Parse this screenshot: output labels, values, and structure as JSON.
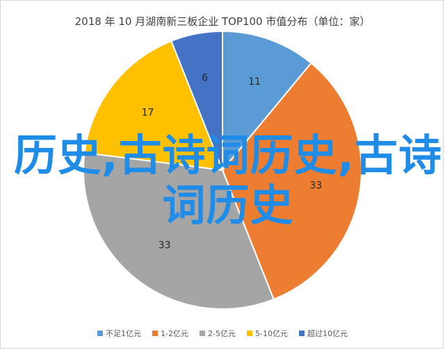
{
  "chart_data": {
    "type": "pie",
    "title": "2018 年 10 月湖南新三板企业 TOP100 市值分布（单位：家）",
    "categories": [
      "不足1亿元",
      "1-2亿元",
      "2-5亿元",
      "5-10亿元",
      "超过10亿元"
    ],
    "values": [
      11,
      33,
      33,
      17,
      6
    ],
    "colors": [
      "#5b9bd5",
      "#ed7d31",
      "#a5a5a5",
      "#ffc000",
      "#4472c4"
    ],
    "legend_position": "bottom"
  },
  "watermark": {
    "text": "历史,古诗词历史,古诗词历史"
  }
}
